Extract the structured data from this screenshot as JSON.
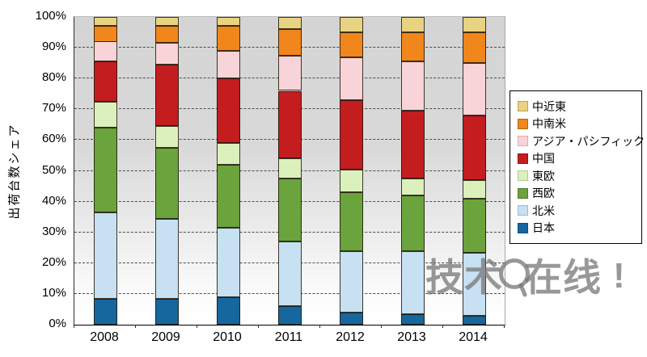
{
  "chart_data": {
    "type": "bar",
    "subtype": "100-percent-stacked-column",
    "title": "",
    "xlabel": "",
    "ylabel": "出荷台数シェア",
    "ylim": [
      0,
      100
    ],
    "y_ticks": [
      "0%",
      "10%",
      "20%",
      "30%",
      "40%",
      "50%",
      "60%",
      "70%",
      "80%",
      "90%",
      "100%"
    ],
    "grid": "horizontal-dashed",
    "legend_position": "right-outside",
    "legend_order_top_to_bottom": [
      "中近東",
      "中南米",
      "アジア・パシフィック",
      "中国",
      "東欧",
      "西欧",
      "北米",
      "日本"
    ],
    "categories": [
      "2008",
      "2009",
      "2010",
      "2011",
      "2012",
      "2013",
      "2014"
    ],
    "series": [
      {
        "name": "日本",
        "color": "#16679E",
        "swatch_border": "#0d4c78",
        "values": [
          8.5,
          8.5,
          9,
          6,
          4,
          3.5,
          3
        ]
      },
      {
        "name": "北米",
        "color": "#C7E0F2",
        "swatch_border": "#96bcd8",
        "values": [
          28,
          26,
          22.5,
          21,
          20,
          20.5,
          20.5
        ]
      },
      {
        "name": "西欧",
        "color": "#6BA33C",
        "swatch_border": "#4d7a28",
        "values": [
          27.5,
          23,
          20.5,
          20.5,
          19,
          18,
          17.5
        ]
      },
      {
        "name": "東欧",
        "color": "#DCF0BE",
        "swatch_border": "#b0cc88",
        "values": [
          8.5,
          7,
          7,
          6.5,
          7.5,
          5.5,
          6
        ]
      },
      {
        "name": "中国",
        "color": "#C41D20",
        "swatch_border": "#8e1214",
        "values": [
          13,
          20,
          21,
          22,
          22.5,
          22,
          21
        ]
      },
      {
        "name": "アジア・パシフィック",
        "color": "#F8D3D7",
        "swatch_border": "#e2a9b2",
        "values": [
          6.5,
          7,
          9,
          11.5,
          14,
          16,
          17
        ]
      },
      {
        "name": "中南米",
        "color": "#F0861C",
        "swatch_border": "#b5650f",
        "values": [
          5,
          5.5,
          8,
          8.5,
          8,
          9.5,
          10
        ]
      },
      {
        "name": "中近東",
        "color": "#E8D383",
        "swatch_border": "#b9a453",
        "values": [
          3,
          3,
          3,
          4,
          5,
          5,
          5
        ]
      }
    ]
  },
  "watermark": {
    "text_left": "技术",
    "text_right": "在线",
    "exclamation": "!",
    "icon": "magnifier-circle-icon",
    "color": "#767676"
  }
}
